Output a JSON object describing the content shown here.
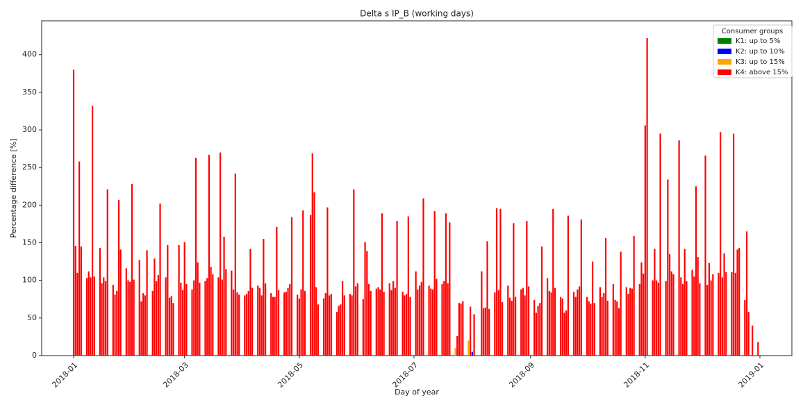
{
  "chart_data": {
    "type": "bar",
    "title": "Delta s IP_B (working days)",
    "xlabel": "Day of year",
    "ylabel": "Percentage difference [%]",
    "legend": "upper right",
    "legend_title": "Consumer groups",
    "xlim": [
      -17,
      382
    ],
    "ylim": [
      0,
      445
    ],
    "yticks": [
      0,
      50,
      100,
      150,
      200,
      250,
      300,
      350,
      400
    ],
    "xticks": [
      {
        "value": 0,
        "label": "2018-01"
      },
      {
        "value": 59,
        "label": "2018-03"
      },
      {
        "value": 120,
        "label": "2018-05"
      },
      {
        "value": 181,
        "label": "2018-07"
      },
      {
        "value": 243,
        "label": "2018-09"
      },
      {
        "value": 304,
        "label": "2018-11"
      },
      {
        "value": 365,
        "label": "2019-01"
      }
    ],
    "series": [
      {
        "name": "K1: up to 5%",
        "color": "#008000",
        "x": [],
        "values": []
      },
      {
        "name": "K2: up to 10%",
        "color": "#0000ff",
        "x": [
          212
        ],
        "values": [
          5
        ]
      },
      {
        "name": "K3: up to 15%",
        "color": "#ffa500",
        "x": [
          203,
          210
        ],
        "values": [
          10,
          20
        ]
      },
      {
        "name": "K4: above 15%",
        "color": "#ff0000",
        "x": [
          0,
          1,
          2,
          3,
          4,
          7,
          8,
          9,
          10,
          11,
          14,
          15,
          16,
          17,
          18,
          21,
          22,
          23,
          24,
          25,
          28,
          29,
          30,
          31,
          32,
          35,
          36,
          37,
          38,
          39,
          42,
          43,
          44,
          45,
          46,
          49,
          50,
          51,
          52,
          53,
          56,
          57,
          58,
          59,
          60,
          63,
          64,
          65,
          66,
          67,
          70,
          71,
          72,
          73,
          74,
          77,
          78,
          79,
          80,
          81,
          84,
          85,
          86,
          87,
          88,
          91,
          92,
          93,
          94,
          95,
          98,
          99,
          100,
          101,
          102,
          105,
          106,
          107,
          108,
          109,
          112,
          113,
          114,
          115,
          116,
          119,
          120,
          121,
          122,
          123,
          126,
          127,
          128,
          129,
          130,
          133,
          134,
          135,
          136,
          137,
          140,
          141,
          142,
          143,
          144,
          147,
          148,
          149,
          150,
          151,
          154,
          155,
          156,
          157,
          158,
          161,
          162,
          163,
          164,
          165,
          168,
          169,
          170,
          171,
          172,
          175,
          176,
          177,
          178,
          179,
          182,
          183,
          184,
          185,
          186,
          189,
          190,
          191,
          192,
          193,
          196,
          197,
          198,
          199,
          200,
          204,
          205,
          206,
          207,
          211,
          213,
          217,
          218,
          219,
          220,
          221,
          224,
          225,
          226,
          227,
          228,
          231,
          232,
          233,
          234,
          235,
          238,
          239,
          240,
          241,
          242,
          245,
          246,
          247,
          248,
          249,
          252,
          253,
          254,
          255,
          256,
          259,
          260,
          261,
          262,
          263,
          266,
          267,
          268,
          269,
          270,
          273,
          274,
          275,
          276,
          277,
          280,
          281,
          282,
          283,
          284,
          287,
          288,
          289,
          290,
          291,
          294,
          295,
          296,
          297,
          298,
          301,
          302,
          303,
          304,
          305,
          308,
          309,
          310,
          311,
          312,
          315,
          316,
          317,
          318,
          319,
          322,
          323,
          324,
          325,
          326,
          329,
          330,
          331,
          332,
          333,
          336,
          337,
          338,
          339,
          340,
          343,
          344,
          345,
          346,
          347,
          350,
          351,
          352,
          353,
          354,
          357,
          358,
          359,
          361,
          364
        ],
        "values": [
          380,
          146,
          110,
          258,
          145,
          103,
          112,
          104,
          332,
          105,
          143,
          96,
          104,
          99,
          221,
          94,
          81,
          86,
          207,
          141,
          116,
          100,
          98,
          228,
          101,
          127,
          72,
          83,
          80,
          140,
          86,
          129,
          99,
          107,
          202,
          104,
          147,
          77,
          79,
          70,
          147,
          97,
          87,
          151,
          95,
          88,
          100,
          263,
          124,
          97,
          99,
          103,
          267,
          118,
          108,
          104,
          270,
          101,
          158,
          115,
          113,
          88,
          242,
          84,
          81,
          80,
          82,
          86,
          142,
          90,
          93,
          90,
          80,
          155,
          96,
          83,
          78,
          78,
          171,
          87,
          84,
          85,
          90,
          95,
          184,
          81,
          76,
          88,
          193,
          86,
          187,
          269,
          217,
          91,
          68,
          76,
          83,
          197,
          80,
          82,
          58,
          66,
          68,
          99,
          80,
          82,
          80,
          221,
          92,
          96,
          75,
          151,
          139,
          95,
          86,
          89,
          91,
          88,
          189,
          85,
          96,
          87,
          99,
          90,
          179,
          85,
          80,
          82,
          185,
          78,
          112,
          88,
          93,
          98,
          209,
          93,
          89,
          88,
          192,
          102,
          95,
          99,
          189,
          96,
          177,
          26,
          70,
          69,
          72,
          65,
          55,
          112,
          63,
          64,
          152,
          62,
          84,
          196,
          87,
          195,
          71,
          93,
          77,
          73,
          176,
          78,
          88,
          90,
          80,
          179,
          92,
          74,
          57,
          66,
          70,
          145,
          103,
          86,
          84,
          195,
          90,
          78,
          76,
          57,
          60,
          186,
          85,
          78,
          88,
          92,
          181,
          78,
          72,
          69,
          125,
          70,
          91,
          78,
          83,
          156,
          73,
          95,
          74,
          72,
          63,
          138,
          91,
          82,
          90,
          89,
          159,
          95,
          124,
          109,
          306,
          422,
          100,
          142,
          100,
          97,
          295,
          99,
          234,
          135,
          112,
          108,
          286,
          104,
          95,
          142,
          99,
          114,
          105,
          225,
          131,
          96,
          266,
          94,
          123,
          100,
          108,
          110,
          297,
          104,
          136,
          111,
          111,
          295,
          110,
          141,
          143,
          74,
          165,
          58,
          40,
          18
        ]
      }
    ]
  }
}
